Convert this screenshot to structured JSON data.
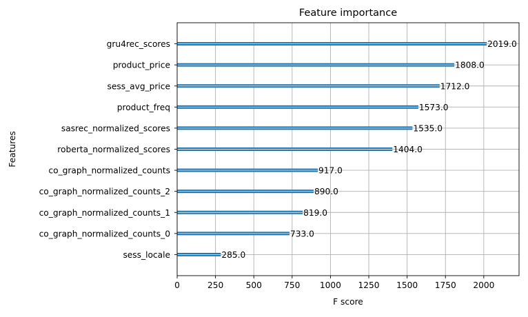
{
  "chart_data": {
    "type": "bar",
    "orientation": "horizontal",
    "title": "Feature importance",
    "xlabel": "F score",
    "ylabel": "Features",
    "xlim": [
      0,
      2230
    ],
    "xticks": [
      0,
      250,
      500,
      750,
      1000,
      1250,
      1500,
      1750,
      2000
    ],
    "grid": true,
    "legend": "none",
    "bar_color": "#1f77b4",
    "categories": [
      "gru4rec_scores",
      "product_price",
      "sess_avg_price",
      "product_freq",
      "sasrec_normalized_scores",
      "roberta_normalized_scores",
      "co_graph_normalized_counts",
      "co_graph_normalized_counts_2",
      "co_graph_normalized_counts_1",
      "co_graph_normalized_counts_0",
      "sess_locale"
    ],
    "values": [
      2019,
      1808,
      1712,
      1573,
      1535,
      1404,
      917,
      890,
      819,
      733,
      285
    ],
    "value_labels": [
      "2019.0",
      "1808.0",
      "1712.0",
      "1573.0",
      "1535.0",
      "1404.0",
      "917.0",
      "890.0",
      "819.0",
      "733.0",
      "285.0"
    ]
  }
}
